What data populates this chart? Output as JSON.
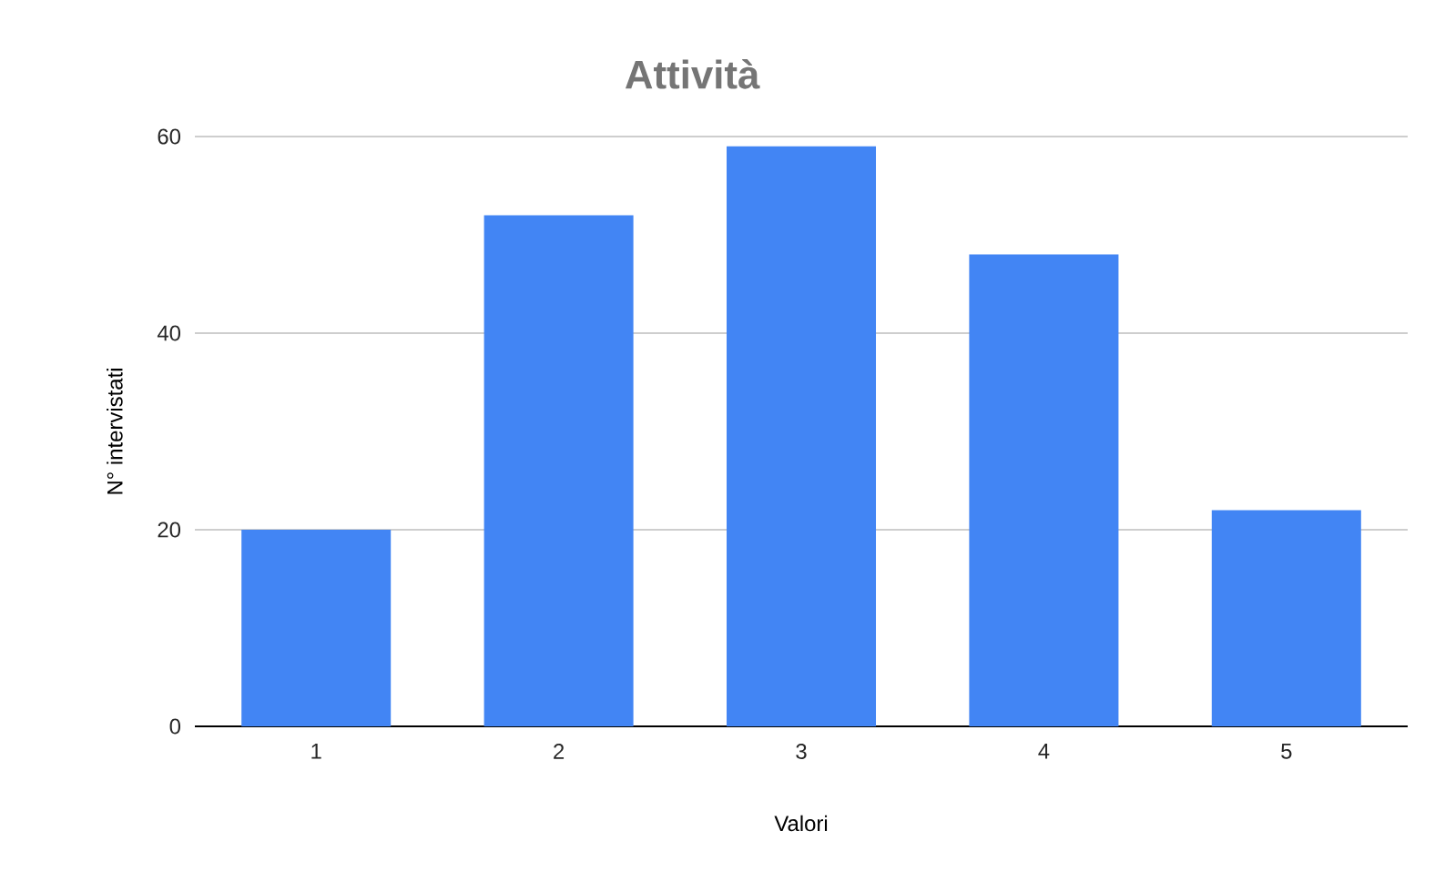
{
  "chart_data": {
    "type": "bar",
    "title": "Attività",
    "xlabel": "Valori",
    "ylabel": "N° intervistati",
    "categories": [
      "1",
      "2",
      "3",
      "4",
      "5"
    ],
    "values": [
      20,
      52,
      59,
      48,
      22
    ],
    "color": "#4285f4",
    "ylim": [
      0,
      60
    ],
    "yticks": [
      0,
      20,
      40,
      60
    ],
    "grid": "y"
  }
}
